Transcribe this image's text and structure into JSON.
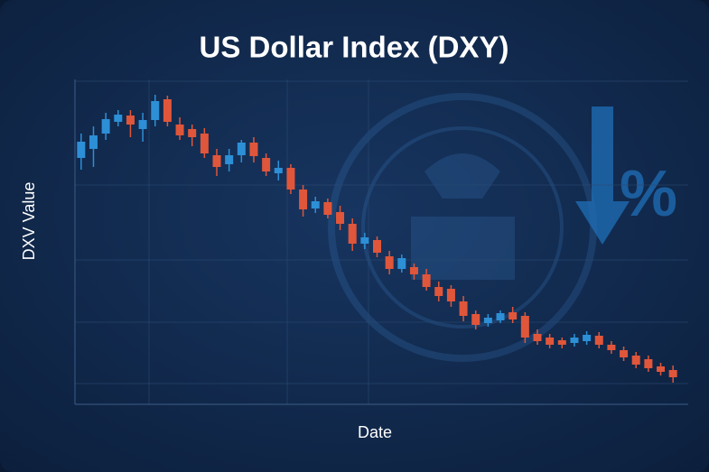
{
  "chart_data": {
    "type": "candlestick",
    "title": "US Dollar Index (DXY)",
    "y_label": "DXV Value",
    "x_label": "Date",
    "up_color": "#2d8fd6",
    "down_color": "#e0563a",
    "ylim": [
      0,
      360
    ],
    "open": [
      273,
      283,
      300,
      313,
      320,
      305,
      315,
      338,
      310,
      305,
      300,
      276,
      266,
      276,
      290,
      273,
      256,
      262,
      238,
      217,
      224,
      213,
      200,
      178,
      182,
      164,
      150,
      152,
      144,
      130,
      128,
      114,
      100,
      90,
      93,
      102,
      98,
      78,
      74,
      71,
      68,
      70,
      76,
      66,
      60,
      54,
      50,
      42,
      38
    ],
    "high": [
      300,
      308,
      323,
      326,
      326,
      323,
      343,
      342,
      318,
      310,
      306,
      283,
      283,
      293,
      296,
      278,
      270,
      266,
      243,
      230,
      228,
      220,
      206,
      190,
      186,
      170,
      166,
      156,
      150,
      136,
      132,
      120,
      104,
      100,
      104,
      108,
      102,
      83,
      78,
      74,
      78,
      81,
      80,
      70,
      64,
      58,
      54,
      46,
      43
    ],
    "low": [
      260,
      263,
      293,
      308,
      296,
      291,
      308,
      308,
      293,
      286,
      273,
      253,
      258,
      268,
      268,
      253,
      248,
      233,
      208,
      212,
      206,
      193,
      170,
      172,
      163,
      144,
      146,
      138,
      126,
      114,
      108,
      92,
      83,
      86,
      90,
      90,
      68,
      66,
      62,
      62,
      64,
      66,
      62,
      56,
      48,
      40,
      36,
      32,
      24
    ],
    "close": [
      291,
      298,
      316,
      321,
      310,
      315,
      336,
      313,
      298,
      296,
      278,
      263,
      276,
      290,
      275,
      258,
      262,
      238,
      216,
      225,
      210,
      200,
      178,
      185,
      168,
      150,
      162,
      144,
      130,
      120,
      114,
      98,
      88,
      96,
      101,
      94,
      74,
      70,
      66,
      66,
      74,
      77,
      66,
      60,
      52,
      44,
      40,
      36,
      30
    ]
  }
}
